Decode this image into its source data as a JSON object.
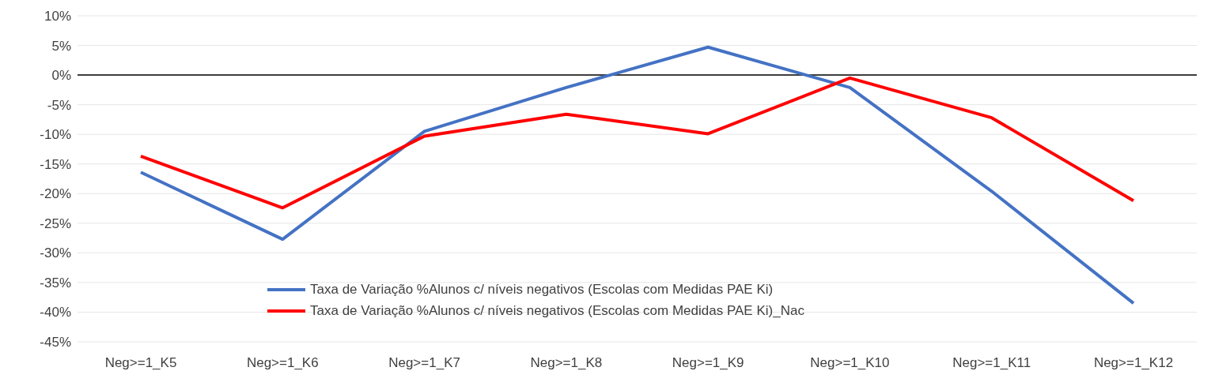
{
  "chart_data": {
    "type": "line",
    "categories": [
      "Neg>=1_K5",
      "Neg>=1_K6",
      "Neg>=1_K7",
      "Neg>=1_K8",
      "Neg>=1_K9",
      "Neg>=1_K10",
      "Neg>=1_K11",
      "Neg>=1_K12"
    ],
    "series": [
      {
        "name": "Taxa de Variação %Alunos c/ níveis negativos (Escolas com Medidas PAE Ki)",
        "color": "#4472c4",
        "values": [
          -16.4,
          -27.7,
          -9.5,
          -2.1,
          4.7,
          -2.1,
          -19.6,
          -38.5
        ]
      },
      {
        "name": "Taxa de Variação %Alunos c/ níveis negativos (Escolas com Medidas PAE Ki)_Nac",
        "color": "#ff0000",
        "values": [
          -13.7,
          -22.4,
          -10.3,
          -6.6,
          -9.9,
          -0.5,
          -7.2,
          -21.2
        ]
      }
    ],
    "ylim": [
      -45,
      10
    ],
    "yticks": [
      {
        "value": -45,
        "label": "-45%"
      },
      {
        "value": -40,
        "label": "-40%"
      },
      {
        "value": -35,
        "label": "-35%"
      },
      {
        "value": -30,
        "label": "-30%"
      },
      {
        "value": -25,
        "label": "-25%"
      },
      {
        "value": -20,
        "label": "-20%"
      },
      {
        "value": -15,
        "label": "-15%"
      },
      {
        "value": -10,
        "label": "-10%"
      },
      {
        "value": -5,
        "label": "-5%"
      },
      {
        "value": 0,
        "label": "0%"
      },
      {
        "value": 5,
        "label": "5%"
      },
      {
        "value": 10,
        "label": "10%"
      }
    ],
    "ref_lines": [
      {
        "axis": "y",
        "value": 0,
        "color": "#000000"
      }
    ],
    "grid": "y",
    "legend": "bottom",
    "marker": "none",
    "line_style": "solid"
  }
}
